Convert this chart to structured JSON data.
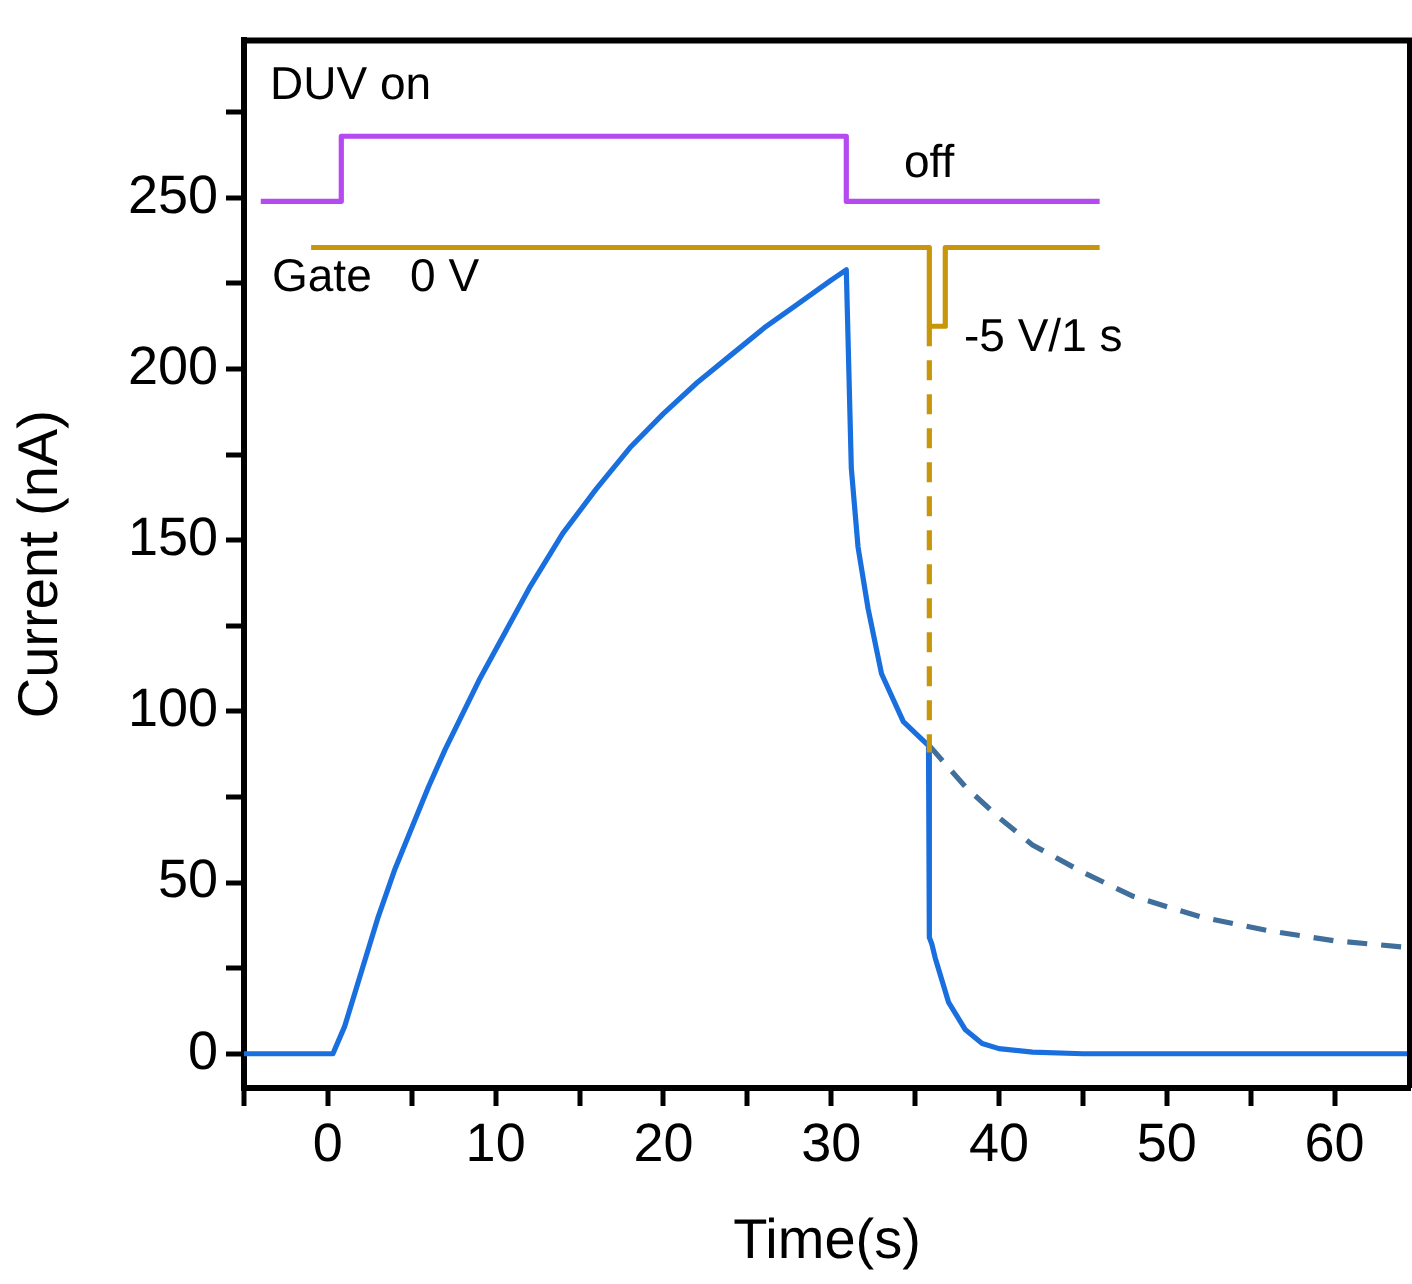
{
  "chart_data": {
    "type": "line",
    "xlabel": "Time(s)",
    "ylabel": "Current (nA)",
    "xlim": [
      -5,
      64.5
    ],
    "ylim": [
      -10,
      296
    ],
    "xticks": [
      {
        "value": -5,
        "label": null
      },
      0,
      {
        "value": 5,
        "label": null
      },
      10,
      {
        "value": 15,
        "label": null
      },
      20,
      {
        "value": 25,
        "label": null
      },
      30,
      {
        "value": 35,
        "label": null
      },
      40,
      {
        "value": 45,
        "label": null
      },
      50,
      {
        "value": 55,
        "label": null
      },
      60
    ],
    "yticks": [
      0,
      {
        "value": 25,
        "label": null
      },
      50,
      {
        "value": 75,
        "label": null
      },
      100,
      {
        "value": 125,
        "label": null
      },
      150,
      {
        "value": 175,
        "label": null
      },
      200,
      {
        "value": 225,
        "label": null
      },
      250,
      {
        "value": 275,
        "label": null
      }
    ],
    "grid": false,
    "legend": false,
    "marker": "none",
    "series": [
      {
        "color": "#b44af0",
        "line_style": "solid",
        "x": [
          -4,
          0.8,
          0.8,
          30.9,
          30.9,
          46
        ],
        "values": [
          249,
          249,
          268,
          268,
          249,
          249
        ]
      },
      {
        "color": "#c8960a",
        "line_style": "solid",
        "x": [
          -1,
          35.85,
          35.85,
          36.8,
          36.8,
          46
        ],
        "values": [
          235.5,
          235.5,
          212.5,
          212.5,
          235.5,
          235.5
        ]
      },
      {
        "color": "#c8960a",
        "line_style": "dashed",
        "x": [
          35.85,
          35.85
        ],
        "values": [
          212.5,
          88
        ]
      },
      {
        "color": "#3f6f9a",
        "line_style": "dashed",
        "x": [
          35.85,
          38,
          40,
          42,
          45,
          48,
          52,
          56,
          60,
          64.5
        ],
        "values": [
          90,
          78,
          69,
          61,
          53,
          46,
          40,
          36,
          33,
          31
        ]
      },
      {
        "color": "#1a6fdf",
        "line_style": "solid",
        "x": [
          -5,
          0.3,
          1,
          2,
          3,
          4,
          5,
          6,
          7,
          8,
          9,
          10,
          12,
          14,
          16,
          18,
          20,
          22,
          24,
          26,
          28,
          30,
          30.9,
          31.2,
          31.6,
          32.2,
          33,
          34.3,
          35.8,
          35.85,
          36,
          36.2,
          37,
          38,
          39,
          40,
          42,
          45,
          64.5
        ],
        "values": [
          0,
          0,
          8,
          24,
          40,
          54,
          66,
          78,
          89,
          99,
          109,
          118,
          136,
          152,
          165,
          177,
          187,
          196,
          204,
          212,
          219,
          226,
          229,
          171,
          148,
          130,
          111,
          97,
          90,
          34,
          32,
          28,
          15,
          7,
          3,
          1.5,
          0.5,
          0,
          0
        ]
      }
    ],
    "annotations": [
      "DUV on",
      "off",
      "Gate   0 V",
      "-5 V/1 s"
    ]
  }
}
